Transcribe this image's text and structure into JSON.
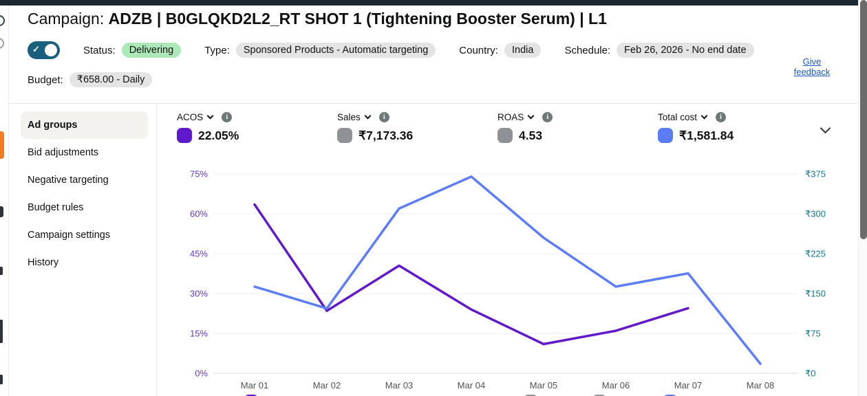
{
  "header": {
    "title_prefix": "Campaign: ",
    "title_bold": "ADZB | B0GLQKD2L2_RT SHOT 1 (Tightening Booster Serum) | L1",
    "status_label": "Status:",
    "status_value": "Delivering",
    "type_label": "Type:",
    "type_value": "Sponsored Products - Automatic targeting",
    "country_label": "Country:",
    "country_value": "India",
    "schedule_label": "Schedule:",
    "schedule_value": "Feb 26, 2026 - No end date",
    "budget_label": "Budget:",
    "budget_value": "₹658.00 - Daily",
    "feedback_link": "Give feedback",
    "toggle_on": true,
    "status_pill_color": "#ade9b8",
    "toggle_color": "#1a5f7e"
  },
  "sidebar": {
    "items": [
      {
        "label": "Ad groups",
        "selected": true
      },
      {
        "label": "Bid adjustments",
        "selected": false
      },
      {
        "label": "Negative targeting",
        "selected": false
      },
      {
        "label": "Budget rules",
        "selected": false
      },
      {
        "label": "Campaign settings",
        "selected": false
      },
      {
        "label": "History",
        "selected": false
      }
    ]
  },
  "metrics": [
    {
      "label": "ACOS",
      "value": "22.05%",
      "swatch": "#6019cb",
      "has_dropdown": true,
      "has_info": true
    },
    {
      "label": "Sales",
      "value": "₹7,173.36",
      "swatch": "#8e9297",
      "has_dropdown": true,
      "has_info": true
    },
    {
      "label": "ROAS",
      "value": "4.53",
      "swatch": "#8e9297",
      "has_dropdown": true,
      "has_info": true
    },
    {
      "label": "Total cost",
      "value": "₹1,581.84",
      "swatch": "#5b7cf5",
      "has_dropdown": true,
      "has_info": true
    }
  ],
  "chart_data": {
    "type": "line",
    "title": "",
    "x": [
      "Mar 01",
      "Mar 02",
      "Mar 03",
      "Mar 04",
      "Mar 05",
      "Mar 06",
      "Mar 07",
      "Mar 08"
    ],
    "series": [
      {
        "name": "ACOS",
        "axis": "left",
        "color": "#6119c9",
        "values": [
          63.5,
          23.5,
          40.5,
          24,
          11,
          16,
          24.5,
          null
        ]
      },
      {
        "name": "Total cost",
        "axis": "right",
        "color": "#5c7df6",
        "values": [
          163,
          122,
          310,
          370,
          255,
          163,
          188,
          18
        ]
      }
    ],
    "left_axis": {
      "unit": "%",
      "min": 0,
      "max": 75,
      "ticks": [
        "75%",
        "60%",
        "45%",
        "30%",
        "15%",
        "0%"
      ],
      "label_color": "#6536c9"
    },
    "right_axis": {
      "unit": "₹",
      "min": 0,
      "max": 375,
      "ticks": [
        "₹375",
        "₹300",
        "₹225",
        "₹150",
        "₹75",
        "₹0"
      ],
      "label_color": "#10788a"
    },
    "x_label_color": "#4d5254",
    "grid": true,
    "legend_position": "bottom-cut-off"
  }
}
